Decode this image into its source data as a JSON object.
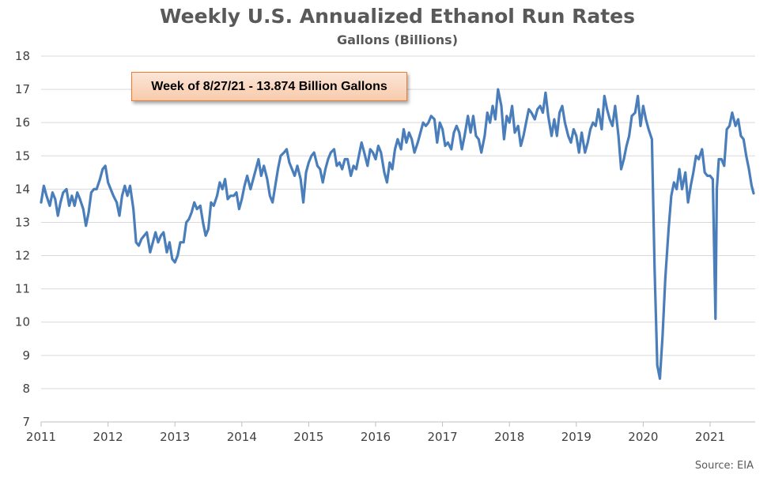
{
  "chart_data": {
    "type": "line",
    "title": "Weekly U.S. Annualized Ethanol Run Rates",
    "subtitle": "Gallons (Billions)",
    "annotation": "Week of 8/27/21 - 13.874 Billion Gallons",
    "source": "Source: EIA",
    "xlabel": "",
    "ylabel": "",
    "x_ticks": [
      "2011",
      "2012",
      "2013",
      "2014",
      "2015",
      "2016",
      "2017",
      "2018",
      "2019",
      "2020",
      "2021"
    ],
    "y_ticks": [
      7,
      8,
      9,
      10,
      11,
      12,
      13,
      14,
      15,
      16,
      17,
      18
    ],
    "xlim": [
      2011.0,
      2021.7
    ],
    "ylim": [
      7,
      18
    ],
    "grid": true,
    "line_color": "#4a7ebb",
    "series": [
      {
        "name": "",
        "points": [
          [
            2011.0,
            13.6
          ],
          [
            2011.04,
            14.1
          ],
          [
            2011.08,
            13.8
          ],
          [
            2011.13,
            13.5
          ],
          [
            2011.17,
            13.9
          ],
          [
            2011.21,
            13.7
          ],
          [
            2011.25,
            13.2
          ],
          [
            2011.29,
            13.6
          ],
          [
            2011.33,
            13.9
          ],
          [
            2011.38,
            14.0
          ],
          [
            2011.42,
            13.5
          ],
          [
            2011.46,
            13.8
          ],
          [
            2011.5,
            13.5
          ],
          [
            2011.54,
            13.9
          ],
          [
            2011.58,
            13.7
          ],
          [
            2011.63,
            13.4
          ],
          [
            2011.67,
            12.9
          ],
          [
            2011.71,
            13.3
          ],
          [
            2011.75,
            13.9
          ],
          [
            2011.79,
            14.0
          ],
          [
            2011.83,
            14.0
          ],
          [
            2011.88,
            14.3
          ],
          [
            2011.92,
            14.6
          ],
          [
            2011.96,
            14.7
          ],
          [
            2012.0,
            14.2
          ],
          [
            2012.04,
            14.0
          ],
          [
            2012.08,
            13.8
          ],
          [
            2012.13,
            13.6
          ],
          [
            2012.17,
            13.2
          ],
          [
            2012.21,
            13.8
          ],
          [
            2012.25,
            14.1
          ],
          [
            2012.29,
            13.8
          ],
          [
            2012.33,
            14.1
          ],
          [
            2012.38,
            13.4
          ],
          [
            2012.42,
            12.4
          ],
          [
            2012.46,
            12.3
          ],
          [
            2012.5,
            12.5
          ],
          [
            2012.54,
            12.6
          ],
          [
            2012.58,
            12.7
          ],
          [
            2012.63,
            12.1
          ],
          [
            2012.67,
            12.4
          ],
          [
            2012.71,
            12.7
          ],
          [
            2012.75,
            12.4
          ],
          [
            2012.79,
            12.6
          ],
          [
            2012.83,
            12.7
          ],
          [
            2012.88,
            12.1
          ],
          [
            2012.92,
            12.4
          ],
          [
            2012.96,
            11.9
          ],
          [
            2013.0,
            11.8
          ],
          [
            2013.04,
            12.0
          ],
          [
            2013.08,
            12.4
          ],
          [
            2013.13,
            12.4
          ],
          [
            2013.17,
            13.0
          ],
          [
            2013.21,
            13.1
          ],
          [
            2013.25,
            13.3
          ],
          [
            2013.29,
            13.6
          ],
          [
            2013.33,
            13.4
          ],
          [
            2013.38,
            13.5
          ],
          [
            2013.42,
            13.0
          ],
          [
            2013.46,
            12.6
          ],
          [
            2013.5,
            12.8
          ],
          [
            2013.54,
            13.6
          ],
          [
            2013.58,
            13.5
          ],
          [
            2013.63,
            13.8
          ],
          [
            2013.67,
            14.2
          ],
          [
            2013.71,
            14.0
          ],
          [
            2013.75,
            14.3
          ],
          [
            2013.79,
            13.7
          ],
          [
            2013.83,
            13.8
          ],
          [
            2013.88,
            13.8
          ],
          [
            2013.92,
            13.9
          ],
          [
            2013.96,
            13.4
          ],
          [
            2014.0,
            13.7
          ],
          [
            2014.04,
            14.1
          ],
          [
            2014.08,
            14.4
          ],
          [
            2014.13,
            14.0
          ],
          [
            2014.17,
            14.3
          ],
          [
            2014.21,
            14.6
          ],
          [
            2014.25,
            14.9
          ],
          [
            2014.29,
            14.4
          ],
          [
            2014.33,
            14.7
          ],
          [
            2014.38,
            14.3
          ],
          [
            2014.42,
            13.8
          ],
          [
            2014.46,
            13.6
          ],
          [
            2014.5,
            14.1
          ],
          [
            2014.54,
            14.6
          ],
          [
            2014.58,
            15.0
          ],
          [
            2014.63,
            15.1
          ],
          [
            2014.67,
            15.2
          ],
          [
            2014.71,
            14.8
          ],
          [
            2014.75,
            14.6
          ],
          [
            2014.79,
            14.4
          ],
          [
            2014.83,
            14.7
          ],
          [
            2014.88,
            14.3
          ],
          [
            2014.92,
            13.6
          ],
          [
            2014.96,
            14.5
          ],
          [
            2015.0,
            14.8
          ],
          [
            2015.04,
            15.0
          ],
          [
            2015.08,
            15.1
          ],
          [
            2015.13,
            14.7
          ],
          [
            2015.17,
            14.6
          ],
          [
            2015.21,
            14.2
          ],
          [
            2015.25,
            14.6
          ],
          [
            2015.29,
            14.9
          ],
          [
            2015.33,
            15.1
          ],
          [
            2015.38,
            15.2
          ],
          [
            2015.42,
            14.7
          ],
          [
            2015.46,
            14.8
          ],
          [
            2015.5,
            14.6
          ],
          [
            2015.54,
            14.9
          ],
          [
            2015.58,
            14.9
          ],
          [
            2015.63,
            14.4
          ],
          [
            2015.67,
            14.7
          ],
          [
            2015.71,
            14.6
          ],
          [
            2015.75,
            15.0
          ],
          [
            2015.79,
            15.4
          ],
          [
            2015.83,
            15.1
          ],
          [
            2015.88,
            14.7
          ],
          [
            2015.92,
            15.2
          ],
          [
            2015.96,
            15.1
          ],
          [
            2016.0,
            14.9
          ],
          [
            2016.04,
            15.3
          ],
          [
            2016.08,
            15.1
          ],
          [
            2016.13,
            14.5
          ],
          [
            2016.17,
            14.2
          ],
          [
            2016.21,
            14.8
          ],
          [
            2016.25,
            14.6
          ],
          [
            2016.29,
            15.2
          ],
          [
            2016.33,
            15.5
          ],
          [
            2016.38,
            15.2
          ],
          [
            2016.42,
            15.8
          ],
          [
            2016.46,
            15.4
          ],
          [
            2016.5,
            15.7
          ],
          [
            2016.54,
            15.5
          ],
          [
            2016.58,
            15.1
          ],
          [
            2016.63,
            15.4
          ],
          [
            2016.67,
            15.7
          ],
          [
            2016.71,
            16.0
          ],
          [
            2016.75,
            15.9
          ],
          [
            2016.79,
            16.0
          ],
          [
            2016.83,
            16.2
          ],
          [
            2016.88,
            16.1
          ],
          [
            2016.92,
            15.4
          ],
          [
            2016.96,
            16.0
          ],
          [
            2017.0,
            15.8
          ],
          [
            2017.04,
            15.3
          ],
          [
            2017.08,
            15.4
          ],
          [
            2017.13,
            15.2
          ],
          [
            2017.17,
            15.7
          ],
          [
            2017.21,
            15.9
          ],
          [
            2017.25,
            15.7
          ],
          [
            2017.29,
            15.2
          ],
          [
            2017.33,
            15.6
          ],
          [
            2017.38,
            16.2
          ],
          [
            2017.42,
            15.7
          ],
          [
            2017.46,
            16.2
          ],
          [
            2017.5,
            15.6
          ],
          [
            2017.54,
            15.5
          ],
          [
            2017.58,
            15.1
          ],
          [
            2017.63,
            15.6
          ],
          [
            2017.67,
            16.3
          ],
          [
            2017.71,
            16.0
          ],
          [
            2017.75,
            16.5
          ],
          [
            2017.79,
            16.1
          ],
          [
            2017.83,
            17.0
          ],
          [
            2017.88,
            16.5
          ],
          [
            2017.92,
            15.5
          ],
          [
            2017.96,
            16.2
          ],
          [
            2018.0,
            16.0
          ],
          [
            2018.04,
            16.5
          ],
          [
            2018.08,
            15.7
          ],
          [
            2018.13,
            15.9
          ],
          [
            2018.17,
            15.3
          ],
          [
            2018.21,
            15.6
          ],
          [
            2018.25,
            16.0
          ],
          [
            2018.29,
            16.4
          ],
          [
            2018.33,
            16.3
          ],
          [
            2018.38,
            16.1
          ],
          [
            2018.42,
            16.4
          ],
          [
            2018.46,
            16.5
          ],
          [
            2018.5,
            16.3
          ],
          [
            2018.54,
            16.9
          ],
          [
            2018.58,
            16.2
          ],
          [
            2018.63,
            15.6
          ],
          [
            2018.67,
            16.1
          ],
          [
            2018.71,
            15.6
          ],
          [
            2018.75,
            16.3
          ],
          [
            2018.79,
            16.5
          ],
          [
            2018.83,
            16.0
          ],
          [
            2018.88,
            15.6
          ],
          [
            2018.92,
            15.4
          ],
          [
            2018.96,
            15.8
          ],
          [
            2019.0,
            15.6
          ],
          [
            2019.04,
            15.1
          ],
          [
            2019.08,
            15.7
          ],
          [
            2019.13,
            15.1
          ],
          [
            2019.17,
            15.4
          ],
          [
            2019.21,
            15.8
          ],
          [
            2019.25,
            16.0
          ],
          [
            2019.29,
            15.9
          ],
          [
            2019.33,
            16.4
          ],
          [
            2019.38,
            15.8
          ],
          [
            2019.42,
            16.8
          ],
          [
            2019.46,
            16.4
          ],
          [
            2019.5,
            16.1
          ],
          [
            2019.54,
            15.9
          ],
          [
            2019.58,
            16.5
          ],
          [
            2019.63,
            15.6
          ],
          [
            2019.67,
            14.6
          ],
          [
            2019.71,
            14.9
          ],
          [
            2019.75,
            15.3
          ],
          [
            2019.79,
            15.6
          ],
          [
            2019.83,
            16.2
          ],
          [
            2019.88,
            16.3
          ],
          [
            2019.92,
            16.8
          ],
          [
            2019.96,
            15.9
          ],
          [
            2020.0,
            16.5
          ],
          [
            2020.04,
            16.1
          ],
          [
            2020.08,
            15.8
          ],
          [
            2020.13,
            15.5
          ],
          [
            2020.17,
            11.6
          ],
          [
            2020.21,
            8.7
          ],
          [
            2020.25,
            8.3
          ],
          [
            2020.29,
            9.6
          ],
          [
            2020.33,
            11.3
          ],
          [
            2020.38,
            12.8
          ],
          [
            2020.42,
            13.8
          ],
          [
            2020.46,
            14.2
          ],
          [
            2020.5,
            14.0
          ],
          [
            2020.54,
            14.6
          ],
          [
            2020.58,
            14.0
          ],
          [
            2020.63,
            14.5
          ],
          [
            2020.67,
            13.6
          ],
          [
            2020.71,
            14.1
          ],
          [
            2020.75,
            14.5
          ],
          [
            2020.79,
            15.0
          ],
          [
            2020.83,
            14.9
          ],
          [
            2020.88,
            15.2
          ],
          [
            2020.92,
            14.5
          ],
          [
            2020.96,
            14.4
          ],
          [
            2021.0,
            14.4
          ],
          [
            2021.04,
            14.3
          ],
          [
            2021.08,
            10.1
          ],
          [
            2021.1,
            14.0
          ],
          [
            2021.13,
            14.9
          ],
          [
            2021.17,
            14.9
          ],
          [
            2021.21,
            14.7
          ],
          [
            2021.25,
            15.8
          ],
          [
            2021.29,
            15.9
          ],
          [
            2021.33,
            16.3
          ],
          [
            2021.38,
            15.9
          ],
          [
            2021.42,
            16.1
          ],
          [
            2021.46,
            15.6
          ],
          [
            2021.5,
            15.5
          ],
          [
            2021.54,
            15.0
          ],
          [
            2021.58,
            14.6
          ],
          [
            2021.62,
            14.1
          ],
          [
            2021.65,
            13.874
          ]
        ]
      }
    ]
  }
}
